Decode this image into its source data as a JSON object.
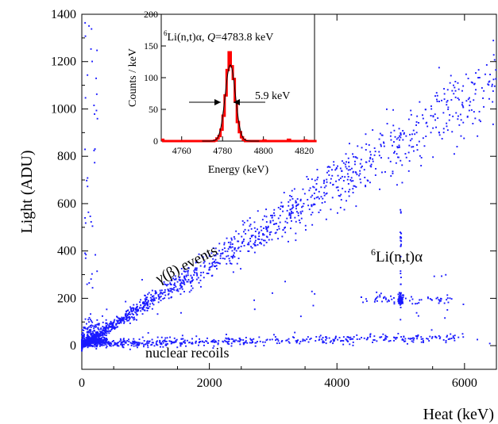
{
  "chart_data": {
    "type": "scatter",
    "xlabel": "Heat (keV)",
    "ylabel": "Light (ADU)",
    "xlim": [
      0,
      6500
    ],
    "ylim": [
      -100,
      1400
    ],
    "xticks": [
      0,
      2000,
      4000,
      6000
    ],
    "yticks": [
      0,
      200,
      400,
      600,
      800,
      1000,
      1200,
      1400
    ],
    "grid": false,
    "point_color": "#1a1aff",
    "annotations": {
      "gamma_beta": "γ(β) events",
      "nuclear_recoils": "nuclear recoils",
      "li_peak_prefix": "6",
      "li_peak_text": "Li(n,t)α"
    },
    "populations": [
      {
        "label": "γ(β) events",
        "x_range": [
          0,
          6500
        ],
        "slope_adu_per_keV": 0.172,
        "approx_points": 1400
      },
      {
        "label": "nuclear recoils",
        "x_range": [
          0,
          6000
        ],
        "y_approx": 15,
        "approx_points": 700
      },
      {
        "label": "6Li(n,t)α",
        "x_center": 5000,
        "y_center": 195,
        "approx_points": 120
      }
    ],
    "inset": {
      "type": "histogram",
      "xlabel": "Energy (keV)",
      "ylabel": "Counts / keV",
      "xlim": [
        4750,
        4825
      ],
      "ylim": [
        0,
        200
      ],
      "xticks": [
        4760,
        4780,
        4800,
        4820
      ],
      "yticks": [
        0,
        50,
        100,
        150,
        200
      ],
      "title_prefix": "6",
      "title_main": "Li(n,t)α, ",
      "title_q": "Q",
      "title_rest": "=4783.8 keV",
      "fwhm_label": "5.9 keV",
      "bar_color": "#ff0000",
      "fit_color": "#000000",
      "gauss_mean": 4783.8,
      "gauss_fwhm": 5.9,
      "gauss_amp": 120,
      "bins": [
        {
          "x": 4750,
          "y": 2
        },
        {
          "x": 4760,
          "y": 0
        },
        {
          "x": 4776,
          "y": 1
        },
        {
          "x": 4777,
          "y": 4
        },
        {
          "x": 4778,
          "y": 8
        },
        {
          "x": 4779,
          "y": 18
        },
        {
          "x": 4780,
          "y": 40
        },
        {
          "x": 4781,
          "y": 72
        },
        {
          "x": 4782,
          "y": 112
        },
        {
          "x": 4783,
          "y": 140
        },
        {
          "x": 4784,
          "y": 118
        },
        {
          "x": 4785,
          "y": 98
        },
        {
          "x": 4786,
          "y": 62
        },
        {
          "x": 4787,
          "y": 30
        },
        {
          "x": 4788,
          "y": 14
        },
        {
          "x": 4789,
          "y": 6
        },
        {
          "x": 4790,
          "y": 2
        },
        {
          "x": 4800,
          "y": 1
        },
        {
          "x": 4812,
          "y": 2
        },
        {
          "x": 4820,
          "y": 1
        }
      ]
    }
  }
}
